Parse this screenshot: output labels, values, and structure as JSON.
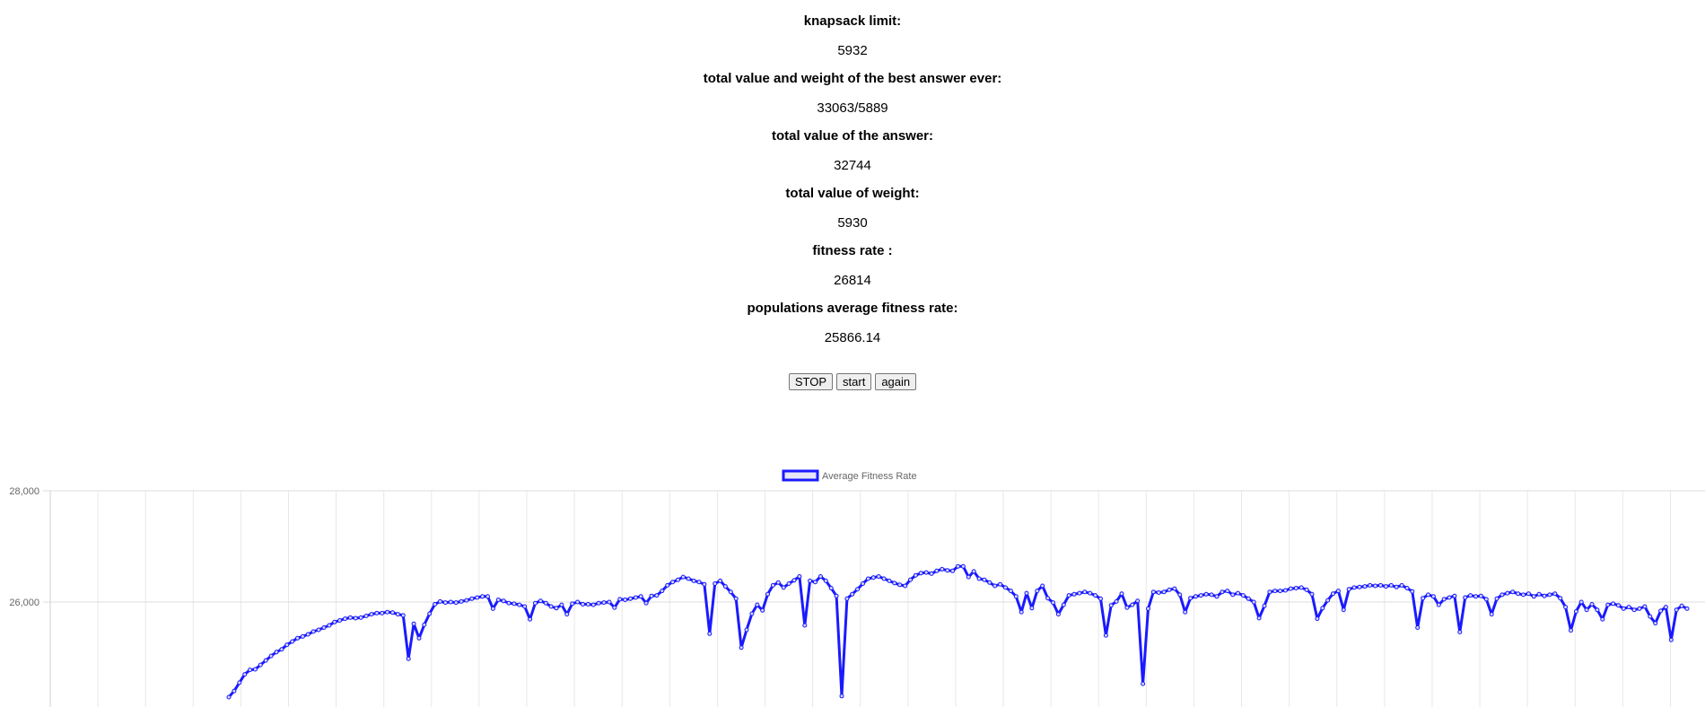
{
  "stats": [
    {
      "label": "knapsack limit:",
      "value": "5932"
    },
    {
      "label": "total value and weight of the best answer ever:",
      "value": "33063/5889"
    },
    {
      "label": "total value of the answer:",
      "value": "32744"
    },
    {
      "label": "total value of weight:",
      "value": "5930"
    },
    {
      "label": "fitness rate :",
      "value": "26814"
    },
    {
      "label": "populations average fitness rate:",
      "value": "25866.14"
    }
  ],
  "buttons": {
    "stop": "STOP",
    "start": "start",
    "again": "again"
  },
  "chart_data": {
    "type": "line",
    "title": "",
    "legend": {
      "label": "Average Fitness Rate",
      "placement": "top-center"
    },
    "y_tick_labels": [
      "28,000",
      "26,000"
    ],
    "ylim": [
      24200,
      28000
    ],
    "grid": true,
    "series_color": "#1a1aff",
    "series": [
      {
        "name": "Average Fitness Rate",
        "values": [
          24290,
          24400,
          24550,
          24700,
          24780,
          24790,
          24870,
          24950,
          25030,
          25100,
          25150,
          25230,
          25290,
          25350,
          25380,
          25420,
          25470,
          25500,
          25540,
          25580,
          25640,
          25670,
          25700,
          25720,
          25710,
          25720,
          25750,
          25780,
          25800,
          25800,
          25820,
          25810,
          25780,
          25760,
          24980,
          25610,
          25350,
          25590,
          25790,
          25960,
          26010,
          25990,
          26000,
          25990,
          26010,
          26030,
          26060,
          26080,
          26100,
          26100,
          25880,
          26040,
          26020,
          25980,
          25970,
          25950,
          25920,
          25690,
          25980,
          26020,
          25980,
          25920,
          25890,
          25950,
          25780,
          25970,
          26000,
          25960,
          25960,
          25950,
          25980,
          25990,
          26000,
          25900,
          26050,
          26040,
          26060,
          26080,
          26100,
          25980,
          26110,
          26120,
          26200,
          26300,
          26360,
          26400,
          26450,
          26420,
          26380,
          26360,
          26320,
          25430,
          26330,
          26380,
          26280,
          26180,
          26060,
          25180,
          25500,
          25790,
          25950,
          25850,
          26140,
          26300,
          26350,
          26260,
          26330,
          26390,
          26460,
          25580,
          26380,
          26360,
          26460,
          26380,
          26250,
          26110,
          24310,
          26060,
          26140,
          26230,
          26330,
          26420,
          26440,
          26460,
          26420,
          26380,
          26340,
          26310,
          26290,
          26400,
          26480,
          26520,
          26530,
          26510,
          26560,
          26590,
          26570,
          26560,
          26640,
          26640,
          26450,
          26550,
          26420,
          26400,
          26350,
          26290,
          26320,
          26260,
          26200,
          26100,
          25820,
          26160,
          25890,
          26200,
          26290,
          26070,
          25990,
          25780,
          25950,
          26120,
          26140,
          26160,
          26180,
          26160,
          26120,
          26060,
          25400,
          25940,
          26010,
          26150,
          25900,
          25950,
          26020,
          24530,
          25880,
          26180,
          26170,
          26180,
          26220,
          26240,
          26130,
          25820,
          26070,
          26100,
          26120,
          26140,
          26130,
          26100,
          26180,
          26200,
          26130,
          26160,
          26120,
          26060,
          26000,
          25710,
          25930,
          26180,
          26200,
          26200,
          26210,
          26240,
          26250,
          26260,
          26220,
          26140,
          25700,
          25890,
          26030,
          26150,
          26200,
          25860,
          26230,
          26260,
          26270,
          26280,
          26300,
          26290,
          26300,
          26280,
          26300,
          26270,
          26300,
          26250,
          26190,
          25540,
          26070,
          26130,
          26100,
          25950,
          26050,
          26080,
          26110,
          25460,
          26080,
          26120,
          26100,
          26110,
          26050,
          25780,
          26060,
          26130,
          26160,
          26180,
          26150,
          26130,
          26150,
          26100,
          26140,
          26110,
          26130,
          26150,
          26070,
          25910,
          25490,
          25830,
          26000,
          25860,
          25960,
          25860,
          25690,
          25950,
          25970,
          25940,
          25880,
          25910,
          25860,
          25880,
          25920,
          25740,
          25620,
          25840,
          25910,
          25320,
          25860,
          25930,
          25880
        ]
      }
    ]
  }
}
